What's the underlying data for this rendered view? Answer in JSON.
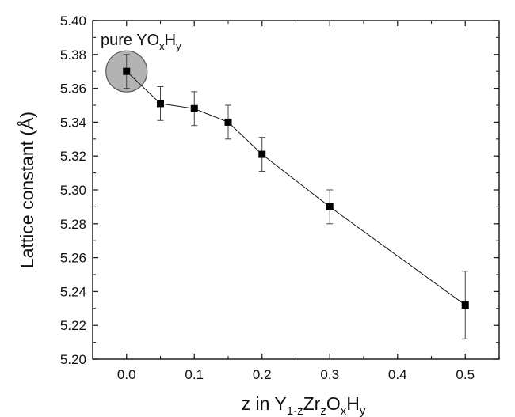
{
  "chart_data": {
    "type": "line",
    "xlabel": {
      "base": "z in Y",
      "sub1": "1-z",
      "mid1": "Zr",
      "sub2": "z",
      "mid2": "O",
      "sub3": "x",
      "mid3": "H",
      "sub4": "y"
    },
    "ylabel": "Lattice constant (Å)",
    "xlim": [
      -0.05,
      0.55
    ],
    "ylim": [
      5.2,
      5.4
    ],
    "x_ticks": [
      "0.0",
      "0.1",
      "0.2",
      "0.3",
      "0.4",
      "0.5"
    ],
    "y_ticks": [
      "5.20",
      "5.22",
      "5.24",
      "5.26",
      "5.28",
      "5.30",
      "5.32",
      "5.34",
      "5.36",
      "5.38",
      "5.40"
    ],
    "grid": false,
    "series": [
      {
        "x": [
          0.0,
          0.05,
          0.1,
          0.15,
          0.2,
          0.3,
          0.5
        ],
        "y": [
          5.37,
          5.351,
          5.348,
          5.34,
          5.321,
          5.29,
          5.232
        ],
        "error": [
          0.01,
          0.01,
          0.01,
          0.01,
          0.01,
          0.01,
          0.02
        ]
      }
    ],
    "annotation": {
      "base": "pure YO",
      "sub1": "x",
      "mid": "H",
      "sub2": "y"
    },
    "highlight_color": "#b3b3b3"
  }
}
